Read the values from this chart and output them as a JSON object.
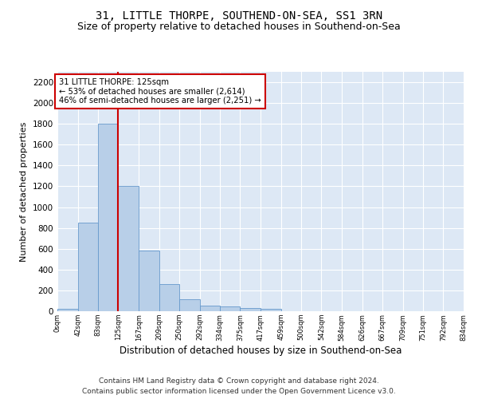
{
  "title": "31, LITTLE THORPE, SOUTHEND-ON-SEA, SS1 3RN",
  "subtitle": "Size of property relative to detached houses in Southend-on-Sea",
  "xlabel": "Distribution of detached houses by size in Southend-on-Sea",
  "ylabel": "Number of detached properties",
  "footnote1": "Contains HM Land Registry data © Crown copyright and database right 2024.",
  "footnote2": "Contains public sector information licensed under the Open Government Licence v3.0.",
  "bin_edges": [
    0,
    42,
    83,
    125,
    167,
    209,
    250,
    292,
    334,
    375,
    417,
    459,
    500,
    542,
    584,
    626,
    667,
    709,
    751,
    792,
    834
  ],
  "bar_heights": [
    25,
    850,
    1800,
    1200,
    585,
    260,
    115,
    50,
    45,
    30,
    20,
    0,
    0,
    0,
    0,
    0,
    0,
    0,
    0,
    0
  ],
  "bar_color": "#b8cfe8",
  "bar_edge_color": "#6699cc",
  "property_line_x": 125,
  "annotation_line1": "31 LITTLE THORPE: 125sqm",
  "annotation_line2": "← 53% of detached houses are smaller (2,614)",
  "annotation_line3": "46% of semi-detached houses are larger (2,251) →",
  "annotation_box_color": "#ffffff",
  "annotation_box_edge_color": "#cc0000",
  "vline_color": "#cc0000",
  "ylim": [
    0,
    2300
  ],
  "yticks": [
    0,
    200,
    400,
    600,
    800,
    1000,
    1200,
    1400,
    1600,
    1800,
    2000,
    2200
  ],
  "plot_background": "#dde8f5",
  "title_fontsize": 10,
  "subtitle_fontsize": 9,
  "tick_labels": [
    "0sqm",
    "42sqm",
    "83sqm",
    "125sqm",
    "167sqm",
    "209sqm",
    "250sqm",
    "292sqm",
    "334sqm",
    "375sqm",
    "417sqm",
    "459sqm",
    "500sqm",
    "542sqm",
    "584sqm",
    "626sqm",
    "667sqm",
    "709sqm",
    "751sqm",
    "792sqm",
    "834sqm"
  ]
}
